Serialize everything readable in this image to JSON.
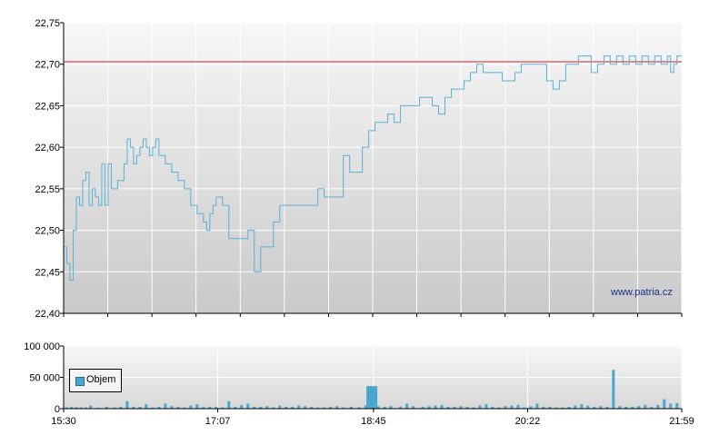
{
  "watermark": "www.patria.cz",
  "colors": {
    "price_line": "#5ab0d6",
    "reference_line": "#cc2222",
    "volume_bars": "#4aa6cf",
    "grid": "#ffffff",
    "axis": "#000000"
  },
  "chart_data": [
    {
      "type": "line",
      "ylim": [
        22.4,
        22.75
      ],
      "y_ticks": [
        "22,40",
        "22,45",
        "22,50",
        "22,55",
        "22,60",
        "22,65",
        "22,70",
        "22,75"
      ],
      "y_tick_values": [
        22.4,
        22.45,
        22.5,
        22.55,
        22.6,
        22.65,
        22.7,
        22.75
      ],
      "xlim_minutes": [
        0,
        389
      ],
      "reference_value": 22.703,
      "series": [
        {
          "x_minutes": [
            0,
            2,
            4,
            6,
            8,
            10,
            12,
            14,
            16,
            18,
            20,
            22,
            24,
            26,
            28,
            30,
            32,
            34,
            36,
            38,
            40,
            42,
            44,
            46,
            48,
            50,
            52,
            54,
            56,
            58,
            60,
            62,
            64,
            66,
            68,
            70,
            72,
            74,
            76,
            78,
            80,
            82,
            84,
            86,
            88,
            90,
            92,
            94,
            96,
            98,
            100,
            104,
            108,
            112,
            116,
            120,
            124,
            128,
            132,
            136,
            140,
            144,
            148,
            152,
            156,
            160,
            164,
            168,
            172,
            176,
            180,
            184,
            188,
            192,
            196,
            200,
            204,
            208,
            212,
            216,
            220,
            224,
            228,
            232,
            236,
            240,
            244,
            248,
            252,
            256,
            260,
            264,
            268,
            272,
            276,
            280,
            284,
            288,
            292,
            296,
            300,
            304,
            308,
            312,
            316,
            320,
            324,
            328,
            332,
            336,
            340,
            344,
            348,
            352,
            356,
            360,
            364,
            368,
            372,
            376,
            380,
            382,
            384,
            386,
            389
          ],
          "values": [
            22.48,
            22.46,
            22.44,
            22.5,
            22.54,
            22.53,
            22.56,
            22.57,
            22.53,
            22.55,
            22.54,
            22.53,
            22.58,
            22.53,
            22.58,
            22.55,
            22.55,
            22.56,
            22.56,
            22.58,
            22.61,
            22.6,
            22.58,
            22.59,
            22.6,
            22.61,
            22.6,
            22.59,
            22.6,
            22.61,
            22.59,
            22.59,
            22.58,
            22.58,
            22.57,
            22.57,
            22.56,
            22.56,
            22.55,
            22.55,
            22.53,
            22.53,
            22.52,
            22.52,
            22.51,
            22.5,
            22.52,
            22.53,
            22.54,
            22.54,
            22.53,
            22.49,
            22.49,
            22.49,
            22.5,
            22.45,
            22.48,
            22.48,
            22.51,
            22.53,
            22.53,
            22.53,
            22.53,
            22.53,
            22.53,
            22.55,
            22.54,
            22.54,
            22.54,
            22.59,
            22.57,
            22.57,
            22.6,
            22.62,
            22.63,
            22.63,
            22.64,
            22.63,
            22.65,
            22.65,
            22.65,
            22.66,
            22.66,
            22.65,
            22.64,
            22.66,
            22.67,
            22.67,
            22.68,
            22.69,
            22.7,
            22.69,
            22.69,
            22.69,
            22.68,
            22.68,
            22.69,
            22.7,
            22.7,
            22.7,
            22.7,
            22.68,
            22.67,
            22.68,
            22.7,
            22.7,
            22.71,
            22.71,
            22.69,
            22.7,
            22.71,
            22.7,
            22.71,
            22.7,
            22.71,
            22.7,
            22.71,
            22.7,
            22.71,
            22.7,
            22.71,
            22.69,
            22.7,
            22.71,
            22.71
          ]
        }
      ]
    },
    {
      "type": "bar",
      "ylim": [
        0,
        100000
      ],
      "y_ticks": [
        "0",
        "50 000",
        "100 000"
      ],
      "y_tick_values": [
        0,
        50000,
        100000
      ],
      "x_ticks": [
        "15:30",
        "17:07",
        "18:45",
        "20:22",
        "21:59"
      ],
      "x_tick_minutes": [
        0,
        97,
        195,
        292,
        389
      ],
      "legend": [
        "Objem"
      ],
      "bars": {
        "x_minutes": [
          2,
          5,
          8,
          11,
          14,
          17,
          22,
          27,
          32,
          36,
          40,
          44,
          48,
          52,
          56,
          60,
          64,
          68,
          72,
          76,
          80,
          84,
          88,
          92,
          96,
          100,
          104,
          108,
          112,
          116,
          120,
          124,
          128,
          132,
          136,
          140,
          144,
          148,
          152,
          156,
          160,
          164,
          168,
          172,
          176,
          181,
          186,
          190,
          194,
          198,
          202,
          206,
          212,
          216,
          220,
          226,
          230,
          234,
          238,
          242,
          246,
          250,
          254,
          258,
          262,
          266,
          270,
          274,
          278,
          282,
          286,
          290,
          294,
          298,
          302,
          306,
          310,
          314,
          318,
          322,
          326,
          330,
          334,
          338,
          342,
          346,
          350,
          354,
          358,
          362,
          366,
          370,
          374,
          378,
          382,
          386
        ],
        "values": [
          2000,
          3000,
          2500,
          2000,
          2000,
          5000,
          1500,
          3000,
          2000,
          3000,
          12000,
          3000,
          3000,
          7000,
          2000,
          3000,
          8000,
          4000,
          3000,
          2000,
          5000,
          7000,
          2500,
          3000,
          3000,
          2000,
          12000,
          3000,
          6000,
          8000,
          3000,
          3000,
          4000,
          2000,
          5000,
          3000,
          3000,
          5000,
          4000,
          3000,
          2000,
          2000,
          3000,
          4000,
          2000,
          3000,
          2500,
          5000,
          36000,
          4000,
          3000,
          4000,
          3500,
          8000,
          4000,
          3000,
          4000,
          5000,
          6000,
          3000,
          3000,
          4000,
          3000,
          2000,
          5000,
          7000,
          3000,
          2000,
          4000,
          5000,
          6000,
          2000,
          4000,
          8000,
          3000,
          3000,
          2000,
          2000,
          3000,
          5000,
          7000,
          5000,
          3000,
          4000,
          3000,
          62000,
          4000,
          3000,
          3000,
          4000,
          6000,
          3000,
          6000,
          15000,
          8000,
          9000
        ]
      }
    }
  ]
}
